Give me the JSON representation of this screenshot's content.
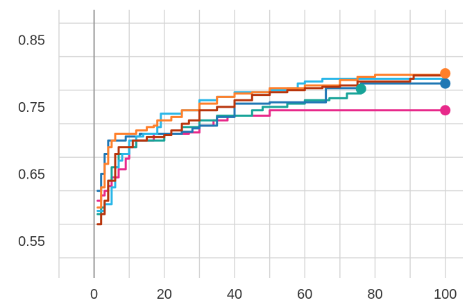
{
  "chart_data": {
    "type": "line",
    "title": "",
    "xlabel": "",
    "ylabel": "",
    "xlim": [
      -10,
      105
    ],
    "ylim": [
      0.495,
      0.895
    ],
    "x_ticks": [
      0,
      20,
      40,
      60,
      80,
      100
    ],
    "y_ticks": [
      0.55,
      0.65,
      0.75,
      0.85
    ],
    "x_tick_labels": [
      "0",
      "20",
      "40",
      "60",
      "80",
      "100"
    ],
    "y_tick_labels": [
      "0.55",
      "0.65",
      "0.75",
      "0.85"
    ],
    "grid": true,
    "legend": "none",
    "series": [
      {
        "color": "#e7298a",
        "end_marker": true,
        "points": [
          [
            1,
            0.61
          ],
          [
            2,
            0.618
          ],
          [
            3,
            0.625
          ],
          [
            4,
            0.632
          ],
          [
            5,
            0.645
          ],
          [
            7,
            0.657
          ],
          [
            9,
            0.673
          ],
          [
            10,
            0.69
          ],
          [
            12,
            0.7
          ],
          [
            15,
            0.7
          ],
          [
            17,
            0.71
          ],
          [
            19,
            0.71
          ],
          [
            21,
            0.71
          ],
          [
            25,
            0.71
          ],
          [
            27,
            0.712
          ],
          [
            30,
            0.722
          ],
          [
            34,
            0.73
          ],
          [
            38,
            0.737
          ],
          [
            49,
            0.737
          ],
          [
            50,
            0.745
          ],
          [
            100,
            0.745
          ]
        ]
      },
      {
        "color": "#17a398",
        "end_marker": true,
        "points": [
          [
            1,
            0.59
          ],
          [
            2,
            0.6
          ],
          [
            3,
            0.61
          ],
          [
            4,
            0.64
          ],
          [
            5,
            0.66
          ],
          [
            7,
            0.68
          ],
          [
            10,
            0.69
          ],
          [
            12,
            0.7
          ],
          [
            15,
            0.7
          ],
          [
            20,
            0.71
          ],
          [
            25,
            0.72
          ],
          [
            30,
            0.73
          ],
          [
            35,
            0.737
          ],
          [
            42,
            0.737
          ],
          [
            45,
            0.745
          ],
          [
            48,
            0.75
          ],
          [
            55,
            0.755
          ],
          [
            60,
            0.76
          ],
          [
            67,
            0.763
          ],
          [
            72,
            0.77
          ],
          [
            76,
            0.777
          ]
        ]
      },
      {
        "color": "#1f77b4",
        "end_marker": true,
        "points": [
          [
            1,
            0.625
          ],
          [
            2,
            0.65
          ],
          [
            3,
            0.68
          ],
          [
            4,
            0.7
          ],
          [
            6,
            0.7
          ],
          [
            8,
            0.7
          ],
          [
            9,
            0.706
          ],
          [
            12,
            0.706
          ],
          [
            13,
            0.71
          ],
          [
            23,
            0.71
          ],
          [
            25,
            0.713
          ],
          [
            28,
            0.718
          ],
          [
            30,
            0.722
          ],
          [
            35,
            0.735
          ],
          [
            39,
            0.735
          ],
          [
            40,
            0.755
          ],
          [
            49,
            0.755
          ],
          [
            50,
            0.757
          ],
          [
            65,
            0.757
          ],
          [
            66,
            0.778
          ],
          [
            75,
            0.778
          ],
          [
            76,
            0.785
          ],
          [
            100,
            0.785
          ]
        ]
      },
      {
        "color": "#29b6e8",
        "end_marker": false,
        "points": [
          [
            1,
            0.595
          ],
          [
            3,
            0.605
          ],
          [
            5,
            0.63
          ],
          [
            6,
            0.66
          ],
          [
            7,
            0.67
          ],
          [
            8,
            0.68
          ],
          [
            10,
            0.7
          ],
          [
            12,
            0.706
          ],
          [
            14,
            0.71
          ],
          [
            18,
            0.72
          ],
          [
            19,
            0.74
          ],
          [
            24,
            0.74
          ],
          [
            25,
            0.745
          ],
          [
            30,
            0.76
          ],
          [
            35,
            0.765
          ],
          [
            40,
            0.772
          ],
          [
            50,
            0.775
          ],
          [
            55,
            0.778
          ],
          [
            58,
            0.785
          ],
          [
            60,
            0.788
          ],
          [
            65,
            0.792
          ],
          [
            100,
            0.792
          ]
        ]
      },
      {
        "color": "#ff7f2a",
        "end_marker": true,
        "points": [
          [
            1,
            0.6
          ],
          [
            2,
            0.63
          ],
          [
            3,
            0.665
          ],
          [
            4,
            0.69
          ],
          [
            5,
            0.7
          ],
          [
            6,
            0.71
          ],
          [
            10,
            0.71
          ],
          [
            12,
            0.715
          ],
          [
            15,
            0.72
          ],
          [
            17,
            0.722
          ],
          [
            18,
            0.73
          ],
          [
            22,
            0.735
          ],
          [
            25,
            0.745
          ],
          [
            30,
            0.755
          ],
          [
            35,
            0.765
          ],
          [
            40,
            0.77
          ],
          [
            45,
            0.772
          ],
          [
            50,
            0.778
          ],
          [
            60,
            0.782
          ],
          [
            70,
            0.79
          ],
          [
            75,
            0.795
          ],
          [
            80,
            0.798
          ],
          [
            100,
            0.8
          ]
        ]
      },
      {
        "color": "#b8340b",
        "end_marker": false,
        "points": [
          [
            1,
            0.575
          ],
          [
            2,
            0.59
          ],
          [
            3,
            0.61
          ],
          [
            4,
            0.64
          ],
          [
            6,
            0.68
          ],
          [
            7,
            0.69
          ],
          [
            10,
            0.69
          ],
          [
            11,
            0.7
          ],
          [
            15,
            0.705
          ],
          [
            20,
            0.708
          ],
          [
            22,
            0.715
          ],
          [
            25,
            0.725
          ],
          [
            27,
            0.73
          ],
          [
            30,
            0.745
          ],
          [
            35,
            0.75
          ],
          [
            40,
            0.76
          ],
          [
            45,
            0.768
          ],
          [
            50,
            0.772
          ],
          [
            55,
            0.775
          ],
          [
            60,
            0.778
          ],
          [
            65,
            0.78
          ],
          [
            70,
            0.782
          ],
          [
            75,
            0.788
          ],
          [
            90,
            0.792
          ],
          [
            91,
            0.797
          ],
          [
            100,
            0.797
          ]
        ]
      }
    ]
  }
}
